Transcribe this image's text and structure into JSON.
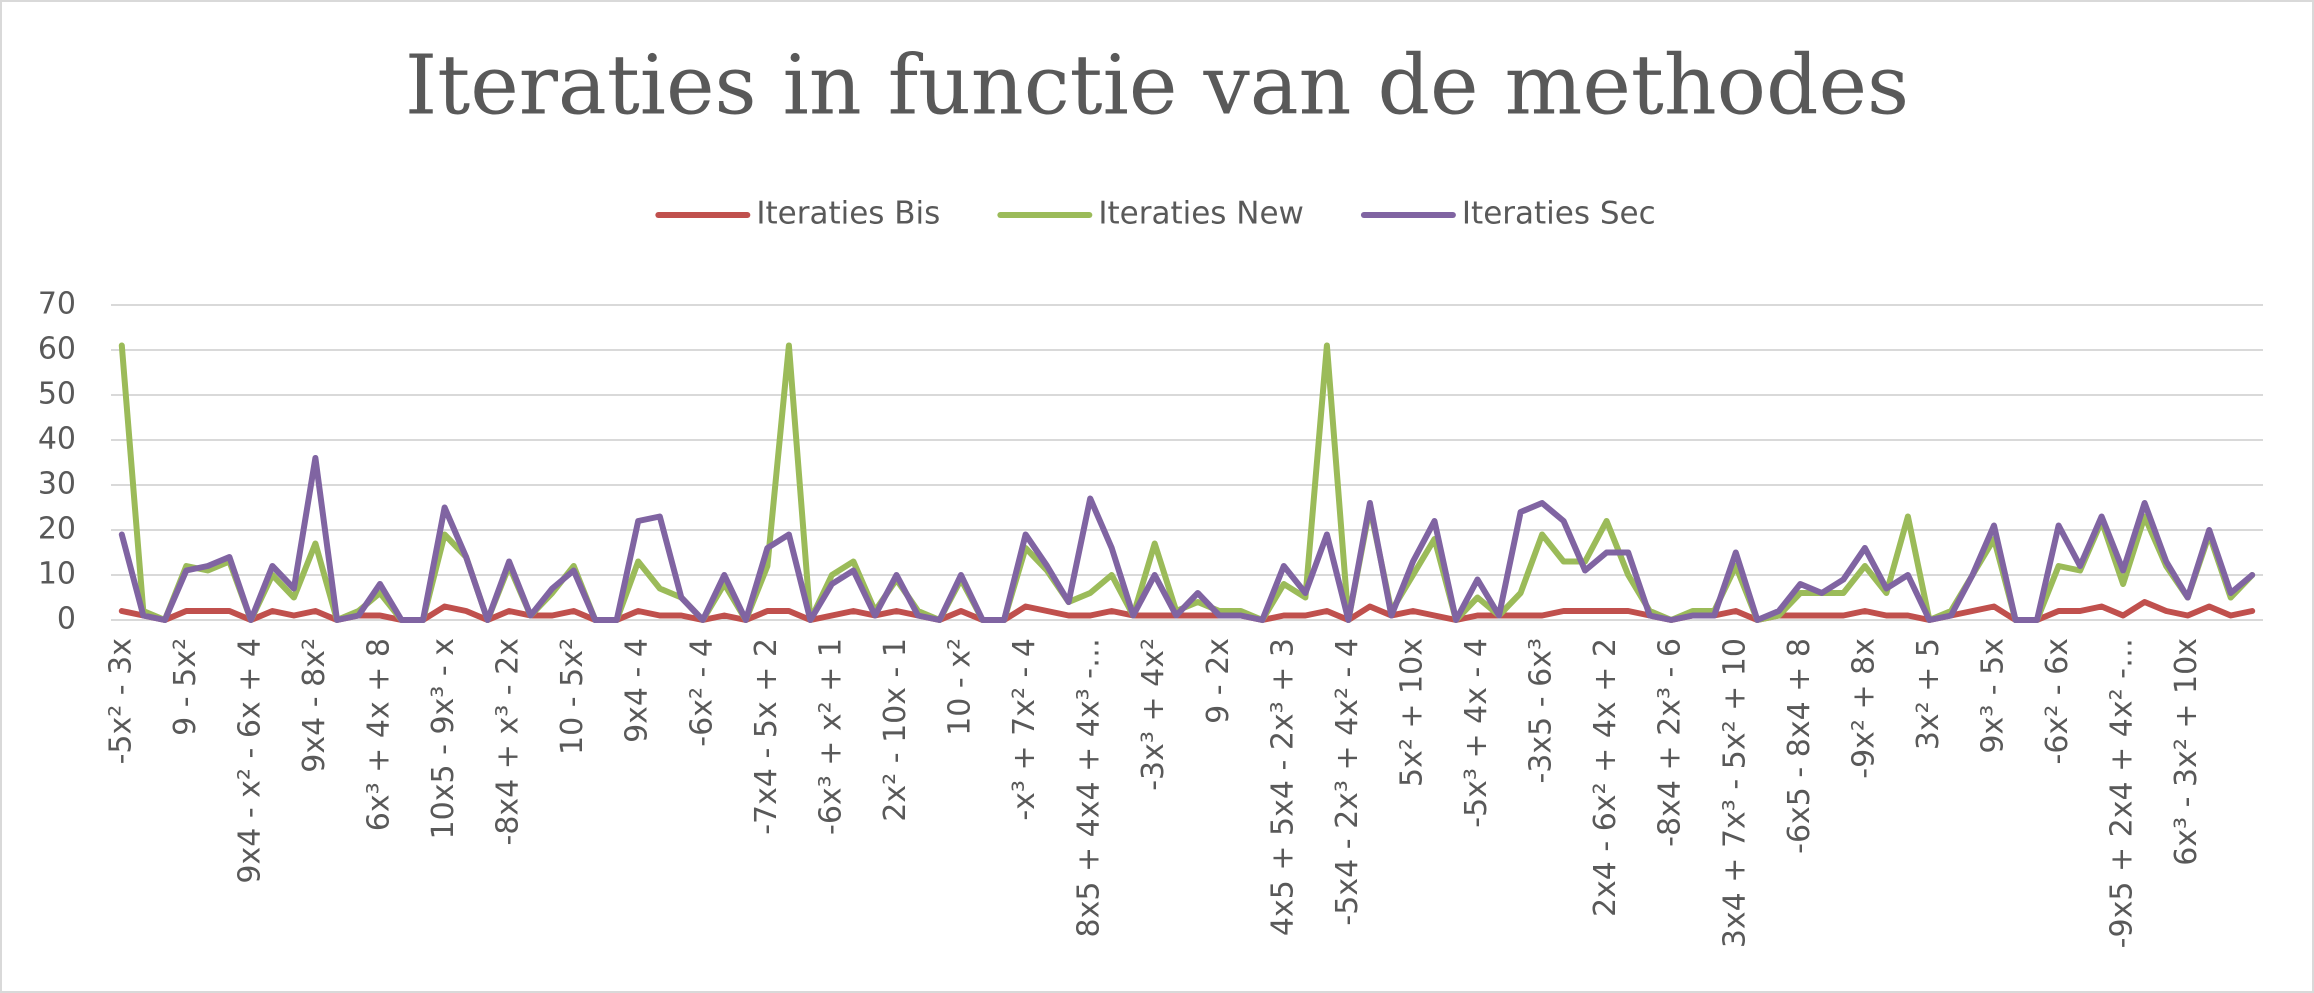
{
  "chart_data": {
    "type": "line",
    "title": "Iteraties in functie van de methodes",
    "categories": [
      "-5x² - 3x",
      null,
      null,
      "9 - 5x²",
      null,
      null,
      "9x4 - x² - 6x + 4",
      null,
      null,
      "9x4 - 8x²",
      null,
      null,
      "6x³ + 4x + 8",
      null,
      null,
      "10x5 - 9x³ - x",
      null,
      null,
      "-8x4 + x³ - 2x",
      null,
      null,
      "10 - 5x²",
      null,
      null,
      "9x4 - 4",
      null,
      null,
      "-6x² - 4",
      null,
      null,
      "-7x4 - 5x + 2",
      null,
      null,
      "-6x³ + x² + 1",
      null,
      null,
      "2x² - 10x - 1",
      null,
      null,
      "10 - x²",
      null,
      null,
      "-x³ + 7x² - 4",
      null,
      null,
      "8x5 + 4x4 + 4x³ -…",
      null,
      null,
      "-3x³ + 4x²",
      null,
      null,
      "9 - 2x",
      null,
      null,
      "4x5 + 5x4 - 2x³ + 3",
      null,
      null,
      "-5x4 - 2x³ + 4x² - 4",
      null,
      null,
      "5x² + 10x",
      null,
      null,
      "-5x³ + 4x - 4",
      null,
      null,
      "-3x5 - 6x³",
      null,
      null,
      "2x4 - 6x² + 4x + 2",
      null,
      null,
      "-8x4 + 2x³ - 6",
      null,
      null,
      "3x4 + 7x³ - 5x² + 10",
      null,
      null,
      "-6x5 - 8x4 + 8",
      null,
      null,
      "-9x² + 8x",
      null,
      null,
      "3x² + 5",
      null,
      null,
      "9x³ - 5x",
      null,
      null,
      "-6x² - 6x",
      null,
      null,
      "-9x5 + 2x4 + 4x² -…",
      null,
      null,
      "6x³ - 3x² + 10x",
      null,
      null,
      null
    ],
    "series": [
      {
        "name": "Iteraties Bis",
        "color": "#c0504d",
        "values": [
          2,
          1,
          0,
          2,
          2,
          2,
          0,
          2,
          1,
          2,
          0,
          1,
          1,
          0,
          0,
          3,
          2,
          0,
          2,
          1,
          1,
          2,
          0,
          0,
          2,
          1,
          1,
          0,
          1,
          0,
          2,
          2,
          0,
          1,
          2,
          1,
          2,
          1,
          0,
          2,
          0,
          0,
          3,
          2,
          1,
          1,
          2,
          1,
          1,
          1,
          1,
          1,
          1,
          0,
          1,
          1,
          2,
          0,
          3,
          1,
          2,
          1,
          0,
          1,
          1,
          1,
          1,
          2,
          2,
          2,
          2,
          1,
          0,
          1,
          1,
          2,
          0,
          1,
          1,
          1,
          1,
          2,
          1,
          1,
          0,
          1,
          2,
          3,
          0,
          0,
          2,
          2,
          3,
          1,
          4,
          2,
          1,
          3,
          1,
          2
        ]
      },
      {
        "name": "Iteraties New",
        "color": "#9bbb59",
        "values": [
          61,
          2,
          0,
          12,
          11,
          13,
          0,
          10,
          5,
          17,
          0,
          2,
          6,
          0,
          0,
          19,
          14,
          0,
          12,
          1,
          6,
          12,
          0,
          0,
          13,
          7,
          5,
          0,
          8,
          0,
          12,
          61,
          0,
          10,
          13,
          2,
          9,
          2,
          0,
          9,
          0,
          0,
          16,
          11,
          4,
          6,
          10,
          1,
          17,
          2,
          4,
          2,
          2,
          0,
          8,
          5,
          61,
          0,
          25,
          2,
          10,
          18,
          0,
          5,
          1,
          6,
          19,
          13,
          13,
          22,
          10,
          2,
          0,
          2,
          2,
          12,
          0,
          1,
          6,
          6,
          6,
          12,
          6,
          23,
          0,
          2,
          10,
          18,
          0,
          0,
          12,
          11,
          22,
          8,
          23,
          12,
          5,
          19,
          5,
          10
        ]
      },
      {
        "name": "Iteraties Sec",
        "color": "#8064a2",
        "values": [
          19,
          1,
          0,
          11,
          12,
          14,
          0,
          12,
          7,
          36,
          0,
          1,
          8,
          0,
          0,
          25,
          14,
          0,
          13,
          1,
          7,
          11,
          0,
          0,
          22,
          23,
          5,
          0,
          10,
          0,
          16,
          19,
          0,
          8,
          11,
          1,
          10,
          1,
          0,
          10,
          0,
          0,
          19,
          12,
          4,
          27,
          16,
          1,
          10,
          1,
          6,
          1,
          1,
          0,
          12,
          6,
          19,
          0,
          26,
          1,
          13,
          22,
          0,
          9,
          1,
          24,
          26,
          22,
          11,
          15,
          15,
          1,
          0,
          1,
          1,
          15,
          0,
          2,
          8,
          6,
          9,
          16,
          7,
          10,
          0,
          1,
          10,
          21,
          0,
          0,
          21,
          12,
          23,
          11,
          26,
          13,
          5,
          20,
          6,
          10
        ]
      }
    ],
    "ylim": [
      0,
      70
    ],
    "yticks": [
      0,
      10,
      20,
      30,
      40,
      50,
      60,
      70
    ],
    "grid": true,
    "legend": "top"
  }
}
